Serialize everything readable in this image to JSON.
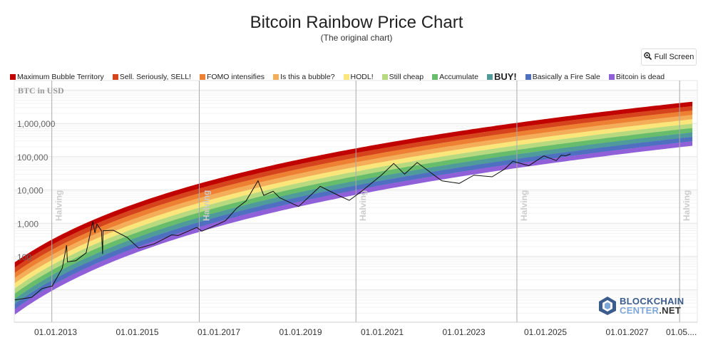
{
  "header": {
    "title": "Bitcoin Rainbow Price Chart",
    "subtitle": "(The original chart)",
    "fullscreen_label": "Full Screen",
    "fullscreen_icon": "zoom-in-icon"
  },
  "logo": {
    "line1": "BLOCKCHAIN",
    "line2a": "CENTER",
    "line2b": ".NET"
  },
  "chart_data": {
    "type": "line",
    "title": "Bitcoin Rainbow Price Chart",
    "ylabel": "BTC in USD",
    "yscale": "log",
    "ylim": [
      1,
      15000000
    ],
    "xlim": [
      "2012-01-01",
      "2028-09-01"
    ],
    "y_ticks": [
      {
        "v": 100,
        "label": "100"
      },
      {
        "v": 1000,
        "label": "1,000"
      },
      {
        "v": 10000,
        "label": "10,000"
      },
      {
        "v": 100000,
        "label": "100,000"
      },
      {
        "v": 1000000,
        "label": "1,000,000"
      }
    ],
    "x_ticks": [
      {
        "d": "2013-01-01",
        "label": "01.01.2013"
      },
      {
        "d": "2015-01-01",
        "label": "01.01.2015"
      },
      {
        "d": "2017-01-01",
        "label": "01.01.2017"
      },
      {
        "d": "2019-01-01",
        "label": "01.01.2019"
      },
      {
        "d": "2021-01-01",
        "label": "01.01.2021"
      },
      {
        "d": "2023-01-01",
        "label": "01.01.2023"
      },
      {
        "d": "2025-01-01",
        "label": "01.01.2025"
      },
      {
        "d": "2027-01-01",
        "label": "01.01.2027"
      },
      {
        "d": "2028-05-01",
        "label": "01.05...."
      }
    ],
    "halvings": [
      {
        "d": "2012-11-28",
        "label": "Halving"
      },
      {
        "d": "2016-07-09",
        "label": "Halving"
      },
      {
        "d": "2020-05-11",
        "label": "Halving"
      },
      {
        "d": "2024-04-20",
        "label": "Halving"
      },
      {
        "d": "2028-04-15",
        "label": "Halving"
      }
    ],
    "bands": [
      {
        "name": "Maximum Bubble Territory",
        "color": "#c00200"
      },
      {
        "name": "Sell. Seriously, SELL!",
        "color": "#d5441c"
      },
      {
        "name": "FOMO intensifies",
        "color": "#ee8034"
      },
      {
        "name": "Is this a bubble?",
        "color": "#f4ae5a"
      },
      {
        "name": "HODL!",
        "color": "#fbe67c"
      },
      {
        "name": "Still cheap",
        "color": "#b7d97f"
      },
      {
        "name": "Accumulate",
        "color": "#67bd6b"
      },
      {
        "name": "BUY!",
        "color": "#4f9a9a"
      },
      {
        "name": "Basically a Fire Sale",
        "color": "#4f70c0"
      },
      {
        "name": "Bitcoin is dead",
        "color": "#9060d8"
      }
    ],
    "series": [
      {
        "color": "#111111",
        "points": [
          [
            "2012-01-01",
            5
          ],
          [
            "2012-06-01",
            6
          ],
          [
            "2012-09-01",
            11
          ],
          [
            "2012-12-01",
            13
          ],
          [
            "2013-03-01",
            45
          ],
          [
            "2013-04-09",
            220
          ],
          [
            "2013-04-16",
            70
          ],
          [
            "2013-07-01",
            75
          ],
          [
            "2013-10-01",
            130
          ],
          [
            "2013-11-30",
            1150
          ],
          [
            "2013-12-18",
            520
          ],
          [
            "2014-01-05",
            950
          ],
          [
            "2014-02-15",
            600
          ],
          [
            "2014-02-25",
            120
          ],
          [
            "2014-03-01",
            600
          ],
          [
            "2014-06-01",
            620
          ],
          [
            "2014-10-01",
            380
          ],
          [
            "2015-01-14",
            180
          ],
          [
            "2015-06-01",
            240
          ],
          [
            "2015-11-04",
            450
          ],
          [
            "2016-01-01",
            430
          ],
          [
            "2016-06-17",
            750
          ],
          [
            "2016-08-01",
            580
          ],
          [
            "2016-12-31",
            960
          ],
          [
            "2017-03-01",
            1200
          ],
          [
            "2017-06-11",
            2900
          ],
          [
            "2017-09-01",
            4700
          ],
          [
            "2017-12-17",
            19000
          ],
          [
            "2018-02-06",
            6900
          ],
          [
            "2018-05-01",
            9200
          ],
          [
            "2018-06-28",
            5900
          ],
          [
            "2018-12-15",
            3200
          ],
          [
            "2019-06-26",
            12900
          ],
          [
            "2019-12-17",
            6600
          ],
          [
            "2020-03-12",
            4900
          ],
          [
            "2020-07-01",
            9200
          ],
          [
            "2020-12-31",
            29000
          ],
          [
            "2021-04-14",
            63000
          ],
          [
            "2021-07-20",
            30000
          ],
          [
            "2021-11-10",
            67000
          ],
          [
            "2022-06-18",
            19000
          ],
          [
            "2022-11-21",
            15800
          ],
          [
            "2023-04-01",
            28000
          ],
          [
            "2023-09-11",
            25000
          ],
          [
            "2023-12-31",
            42500
          ],
          [
            "2024-03-14",
            73000
          ],
          [
            "2024-08-05",
            54000
          ],
          [
            "2024-12-17",
            106000
          ],
          [
            "2025-04-08",
            77000
          ],
          [
            "2025-05-22",
            111000
          ],
          [
            "2025-07-01",
            107000
          ],
          [
            "2025-08-14",
            122000
          ]
        ]
      }
    ]
  }
}
